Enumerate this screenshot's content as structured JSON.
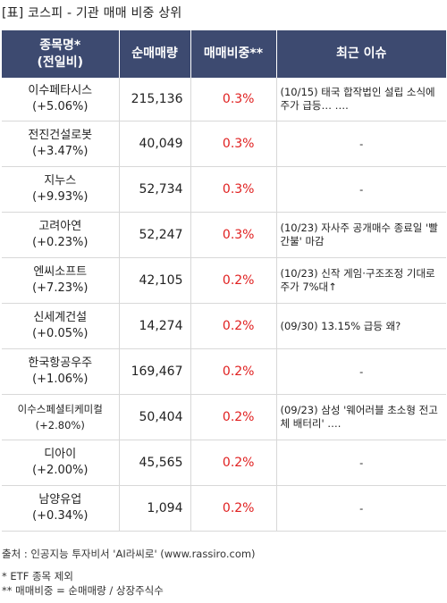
{
  "title": "[표] 코스피 - 기관 매매 비중 상위",
  "headers": {
    "name_line1": "종목명*",
    "name_line2": "(전일비)",
    "volume": "순매매량",
    "ratio": "매매비중**",
    "issue": "최근 이슈"
  },
  "rows": [
    {
      "name": "이수페타시스",
      "change": "(+5.06%)",
      "volume": "215,136",
      "ratio": "0.3%",
      "issue": "(10/15) 태국 합작법인 설립 소식에 주가 급등… …."
    },
    {
      "name": "전진건설로봇",
      "change": "(+3.47%)",
      "volume": "40,049",
      "ratio": "0.3%",
      "issue": "-"
    },
    {
      "name": "지누스",
      "change": "(+9.93%)",
      "volume": "52,734",
      "ratio": "0.3%",
      "issue": "-"
    },
    {
      "name": "고려아연",
      "change": "(+0.23%)",
      "volume": "52,247",
      "ratio": "0.3%",
      "issue": "(10/23) 자사주 공개매수 종료일 '빨간불' 마감"
    },
    {
      "name": "엔씨소프트",
      "change": "(+7.23%)",
      "volume": "42,105",
      "ratio": "0.2%",
      "issue": "(10/23) 신작 게임·구조조정 기대로 주가 7%대↑"
    },
    {
      "name": "신세계건설",
      "change": "(+0.05%)",
      "volume": "14,274",
      "ratio": "0.2%",
      "issue": "(09/30) 13.15% 급등 왜?"
    },
    {
      "name": "한국항공우주",
      "change": "(+1.06%)",
      "volume": "169,467",
      "ratio": "0.2%",
      "issue": "-"
    },
    {
      "name": "이수스페셜티케미컬",
      "change": "(+2.80%)",
      "volume": "50,404",
      "ratio": "0.2%",
      "issue": "(09/23) 삼성 '웨어러블 초소형 전고체 배터리' …."
    },
    {
      "name": "디아이",
      "change": "(+2.00%)",
      "volume": "45,565",
      "ratio": "0.2%",
      "issue": "-"
    },
    {
      "name": "남양유업",
      "change": "(+0.34%)",
      "volume": "1,094",
      "ratio": "0.2%",
      "issue": "-"
    }
  ],
  "footer": {
    "source": "출처 : 인공지능 투자비서 'AI라씨로' (www.rassiro.com)",
    "note1": "* ETF 종목 제외",
    "note2": "** 매매비중 = 순매매량 / 상장주식수"
  }
}
